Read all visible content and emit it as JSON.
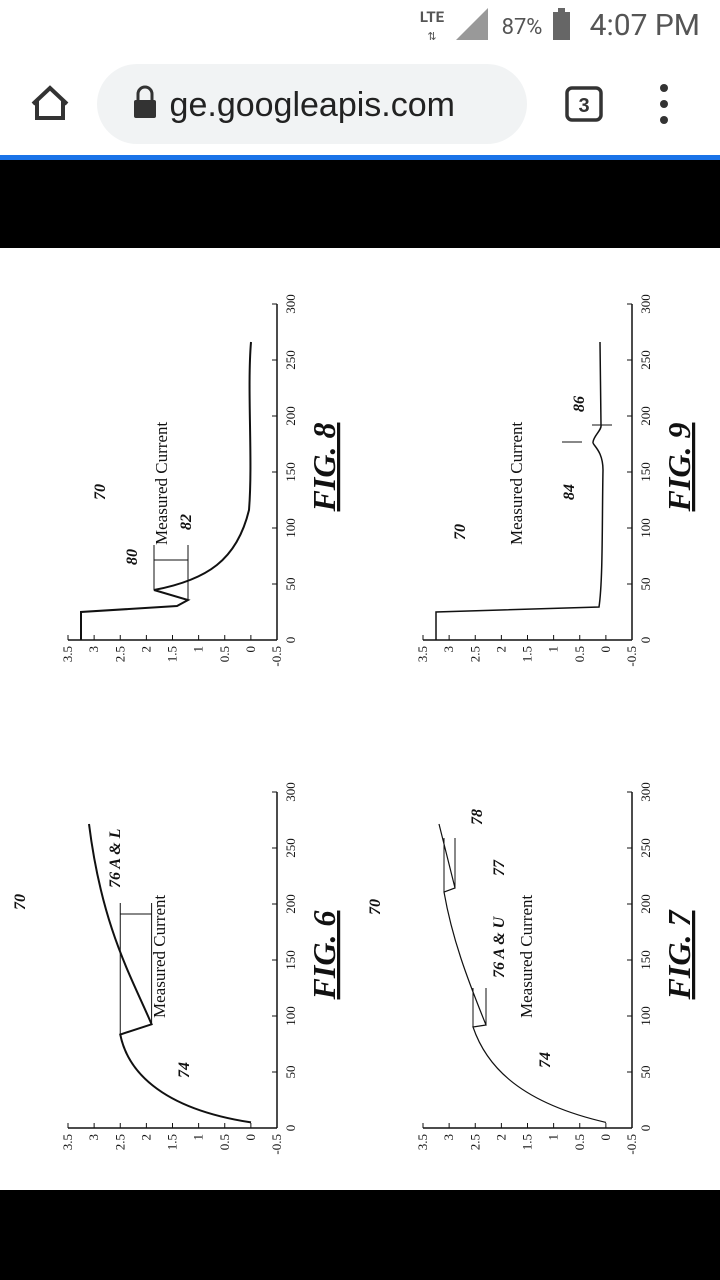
{
  "status_bar": {
    "network": "LTE",
    "battery": "87%",
    "time": "4:07 PM"
  },
  "browser": {
    "url": "ige.googleapis.com",
    "tab_count": 3
  },
  "figures": [
    {
      "caption": "FIG. 6",
      "yticks": [
        3.5,
        3,
        2.5,
        2,
        1.5,
        1,
        0.5,
        0,
        -0.5
      ],
      "xticks": [
        0,
        50,
        100,
        150,
        200,
        250,
        300
      ],
      "xlim": [
        0,
        300
      ],
      "ylim": [
        -0.5,
        3.5
      ],
      "labels": [
        "70",
        "Measured Current",
        "74",
        "76 A & L"
      ]
    },
    {
      "caption": "FIG. 7",
      "yticks": [
        3.5,
        3,
        2.5,
        2,
        1.5,
        1,
        0.5,
        0,
        -0.5
      ],
      "xticks": [
        0,
        50,
        100,
        150,
        200,
        250,
        300
      ],
      "xlim": [
        0,
        300
      ],
      "ylim": [
        -0.5,
        3.5
      ],
      "labels": [
        "70",
        "Measured Current",
        "74",
        "76 A & U",
        "77",
        "78"
      ]
    },
    {
      "caption": "FIG. 8",
      "yticks": [
        3.5,
        3,
        2.5,
        2,
        1.5,
        1,
        0.5,
        0,
        -0.5
      ],
      "xticks": [
        0,
        50,
        100,
        150,
        200,
        250,
        300
      ],
      "xlim": [
        0,
        300
      ],
      "ylim": [
        -0.5,
        3.5
      ],
      "labels": [
        "70",
        "Measured Current",
        "80",
        "82"
      ]
    },
    {
      "caption": "FIG. 9",
      "yticks": [
        3.5,
        3,
        2.5,
        2,
        1.5,
        1,
        0.5,
        0,
        -0.5
      ],
      "xticks": [
        0,
        50,
        100,
        150,
        200,
        250,
        300
      ],
      "xlim": [
        0,
        300
      ],
      "ylim": [
        -0.5,
        3.5
      ],
      "labels": [
        "70",
        "Measured Current",
        "84",
        "86"
      ]
    }
  ]
}
